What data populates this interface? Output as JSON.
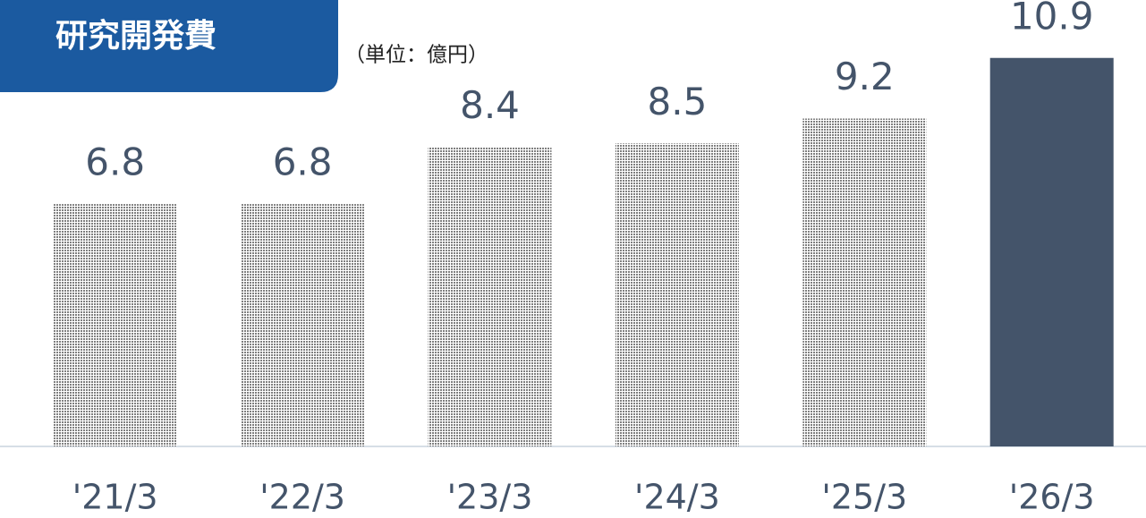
{
  "chart_data": {
    "type": "bar",
    "title": "研究開発費",
    "subtitle": "（単位：億円）",
    "categories": [
      "'21/3",
      "'22/3",
      "'23/3",
      "'24/3",
      "'25/3",
      "'26/3"
    ],
    "values": [
      6.8,
      6.8,
      8.4,
      8.5,
      9.2,
      10.9
    ],
    "colors": [
      "#7f7f7f",
      "#7f7f7f",
      "#7f7f7f",
      "#7f7f7f",
      "#7f7f7f",
      "#44546a"
    ],
    "patterned": [
      true,
      true,
      true,
      true,
      true,
      false
    ],
    "ylim": [
      0,
      12.5
    ]
  }
}
